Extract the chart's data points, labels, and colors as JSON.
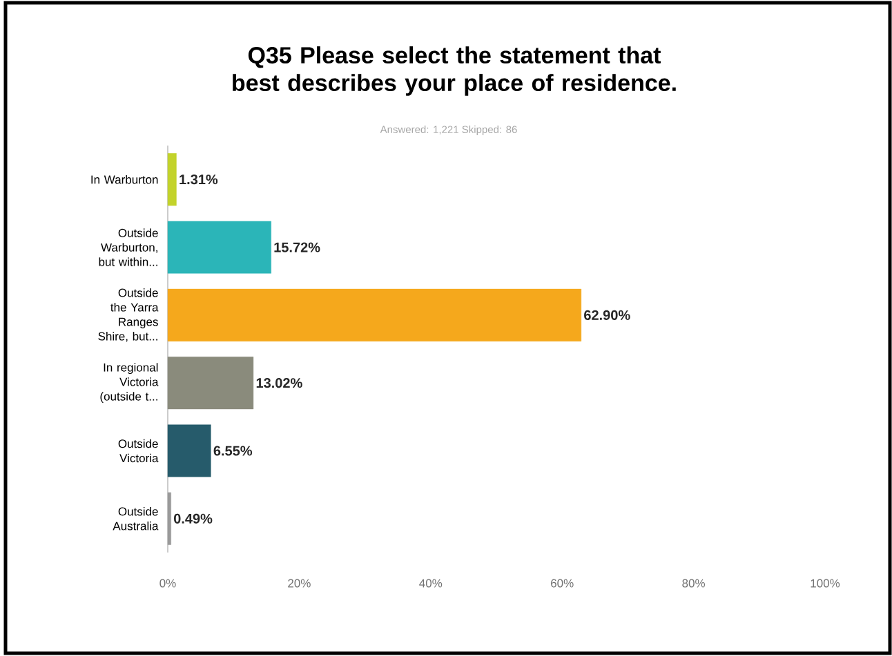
{
  "chart_data": {
    "type": "bar",
    "orientation": "horizontal",
    "title": "Q35 Please select the statement that best describes your place of residence.",
    "subtitle": "Answered: 1,221   Skipped: 86",
    "categories": [
      "In Warburton",
      "Outside Warburton, but within...",
      "Outside the Yarra Ranges Shire, but...",
      "In regional Victoria (outside t...",
      "Outside Victoria",
      "Outside Australia"
    ],
    "values": [
      1.31,
      15.72,
      62.9,
      13.02,
      6.55,
      0.49
    ],
    "value_labels": [
      "1.31%",
      "15.72%",
      "62.90%",
      "13.02%",
      "6.55%",
      "0.49%"
    ],
    "colors": [
      "#c3d32b",
      "#2bb5b8",
      "#f5a81c",
      "#8a8b7c",
      "#265b6b",
      "#9a9a9a"
    ],
    "xlim": [
      0,
      100
    ],
    "xticks": [
      {
        "value": 0,
        "label": "0%"
      },
      {
        "value": 20,
        "label": "20%"
      },
      {
        "value": 40,
        "label": "40%"
      },
      {
        "value": 60,
        "label": "60%"
      },
      {
        "value": 80,
        "label": "80%"
      },
      {
        "value": 100,
        "label": "100%"
      }
    ],
    "grid": false
  }
}
